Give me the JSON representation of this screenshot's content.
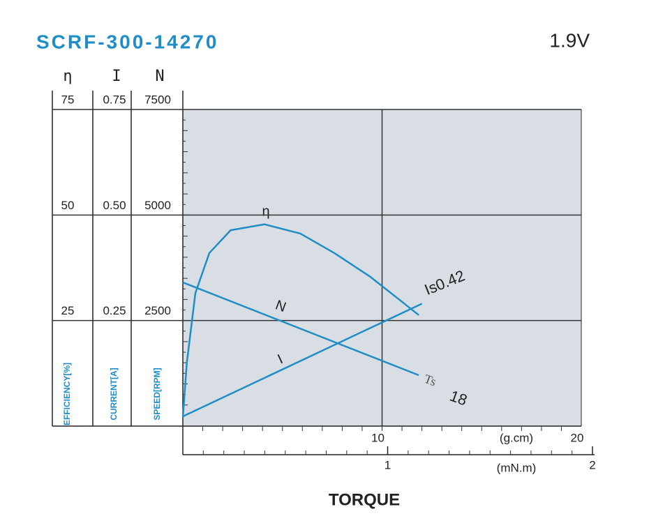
{
  "chart_data": {
    "type": "line",
    "title": "SCRF-300-14270",
    "subtitle": "1.9V",
    "x_label": "TORQUE",
    "x_unit": "(g.cm)",
    "x2_unit": "(mN.m)",
    "xlim": [
      0,
      20
    ],
    "xticks": [
      10,
      20
    ],
    "x2lim": [
      0,
      2
    ],
    "x2ticks": [
      1,
      2
    ],
    "axes": [
      {
        "symbol": "η",
        "label": "EFFICIENCY[%]",
        "ylim": [
          0,
          75
        ],
        "yticks": [
          25,
          50,
          75
        ]
      },
      {
        "symbol": "I",
        "label": "CURRENT[A]",
        "ylim": [
          0,
          0.75
        ],
        "yticks": [
          0.25,
          {
            "value": 0.5,
            "label": "0.50"
          },
          0.75
        ]
      },
      {
        "symbol": "N",
        "label": "SPEED[RPM]",
        "ylim": [
          0,
          7500
        ],
        "yticks": [
          2500,
          5000,
          7500
        ]
      }
    ],
    "grid": true,
    "series": [
      {
        "name": "η",
        "axis": 0,
        "color": "#1f8dc6",
        "x": [
          0,
          0.2,
          0.63,
          1.33,
          2.4,
          4.1,
          5.9,
          7.6,
          9.4,
          10.8,
          11.84
        ],
        "values": [
          2,
          15,
          31.5,
          41,
          46.4,
          47.8,
          45.6,
          41,
          35.4,
          30.2,
          26.3
        ]
      },
      {
        "name": "I",
        "axis": 1,
        "color": "#1f8dc6",
        "x": [
          0,
          12
        ],
        "values": [
          0.023,
          0.29
        ]
      },
      {
        "name": "N",
        "axis": 2,
        "color": "#1f8dc6",
        "x": [
          0,
          11.84
        ],
        "values": [
          3404,
          1206
        ]
      }
    ],
    "annotations": [
      "Is0.42",
      "Ts",
      "18"
    ]
  }
}
